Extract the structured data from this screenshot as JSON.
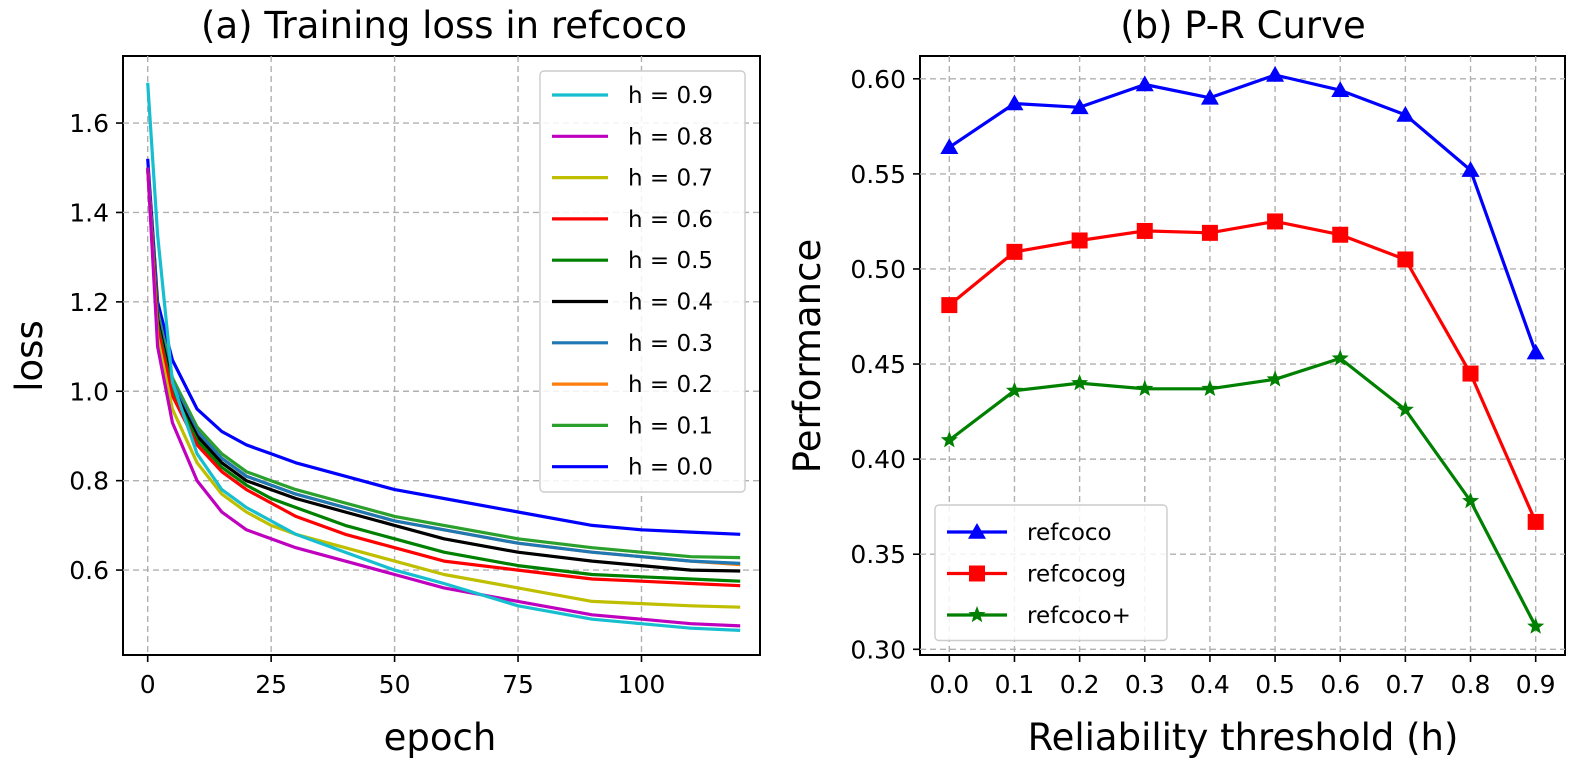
{
  "chart_data": [
    {
      "type": "line",
      "title": "(a) Training loss in refcoco",
      "xlabel": "epoch",
      "ylabel": "loss",
      "xlim": [
        -5,
        124
      ],
      "ylim": [
        0.41,
        1.75
      ],
      "xticks": [
        0,
        25,
        50,
        75,
        100
      ],
      "yticks": [
        0.6,
        0.8,
        1.0,
        1.2,
        1.4,
        1.6
      ],
      "ytick_labels": [
        "0.6",
        "0.8",
        "1.0",
        "1.2",
        "1.4",
        "1.6"
      ],
      "grid": true,
      "legend_position": "top-right",
      "series": [
        {
          "name": "h = 0.9",
          "color": "#17becf",
          "x": [
            0,
            2,
            5,
            10,
            15,
            20,
            25,
            30,
            40,
            50,
            60,
            75,
            90,
            100,
            110,
            120
          ],
          "values": [
            1.69,
            1.35,
            1.02,
            0.86,
            0.78,
            0.74,
            0.71,
            0.68,
            0.64,
            0.6,
            0.57,
            0.52,
            0.49,
            0.48,
            0.47,
            0.465
          ]
        },
        {
          "name": "h = 0.8",
          "color": "#bf00bf",
          "x": [
            0,
            2,
            5,
            10,
            15,
            20,
            25,
            30,
            40,
            50,
            60,
            75,
            90,
            100,
            110,
            120
          ],
          "values": [
            1.5,
            1.1,
            0.93,
            0.8,
            0.73,
            0.69,
            0.67,
            0.65,
            0.62,
            0.59,
            0.56,
            0.53,
            0.5,
            0.49,
            0.48,
            0.475
          ]
        },
        {
          "name": "h = 0.7",
          "color": "#bfbf00",
          "x": [
            0,
            2,
            5,
            10,
            15,
            20,
            25,
            30,
            40,
            50,
            60,
            75,
            90,
            100,
            110,
            120
          ],
          "values": [
            1.5,
            1.12,
            0.96,
            0.84,
            0.77,
            0.73,
            0.7,
            0.68,
            0.65,
            0.62,
            0.59,
            0.56,
            0.53,
            0.525,
            0.52,
            0.517
          ]
        },
        {
          "name": "h = 0.6",
          "color": "#ff0000",
          "x": [
            0,
            2,
            5,
            10,
            15,
            20,
            25,
            30,
            40,
            50,
            60,
            75,
            90,
            100,
            110,
            120
          ],
          "values": [
            1.5,
            1.14,
            0.99,
            0.88,
            0.82,
            0.78,
            0.75,
            0.72,
            0.68,
            0.65,
            0.62,
            0.6,
            0.58,
            0.575,
            0.57,
            0.565
          ]
        },
        {
          "name": "h = 0.5",
          "color": "#008000",
          "x": [
            0,
            2,
            5,
            10,
            15,
            20,
            25,
            30,
            40,
            50,
            60,
            75,
            90,
            100,
            110,
            120
          ],
          "values": [
            1.5,
            1.15,
            1.0,
            0.89,
            0.83,
            0.79,
            0.76,
            0.74,
            0.7,
            0.67,
            0.64,
            0.61,
            0.59,
            0.585,
            0.58,
            0.575
          ]
        },
        {
          "name": "h = 0.4",
          "color": "#000000",
          "x": [
            0,
            2,
            5,
            10,
            15,
            20,
            25,
            30,
            40,
            50,
            60,
            75,
            90,
            100,
            110,
            120
          ],
          "values": [
            1.5,
            1.16,
            1.01,
            0.9,
            0.84,
            0.8,
            0.78,
            0.76,
            0.73,
            0.7,
            0.67,
            0.64,
            0.62,
            0.61,
            0.6,
            0.598
          ]
        },
        {
          "name": "h = 0.3",
          "color": "#1f77b4",
          "x": [
            0,
            2,
            5,
            10,
            15,
            20,
            25,
            30,
            40,
            50,
            60,
            75,
            90,
            100,
            110,
            120
          ],
          "values": [
            1.5,
            1.17,
            1.02,
            0.91,
            0.85,
            0.81,
            0.79,
            0.77,
            0.74,
            0.71,
            0.69,
            0.66,
            0.64,
            0.63,
            0.62,
            0.615
          ]
        },
        {
          "name": "h = 0.2",
          "color": "#ff7f0e",
          "x": [
            0,
            2,
            5,
            10,
            15,
            20,
            25,
            30,
            40,
            50,
            60,
            75,
            90,
            100,
            110,
            120
          ],
          "values": [
            1.5,
            1.17,
            1.02,
            0.91,
            0.85,
            0.81,
            0.79,
            0.77,
            0.74,
            0.71,
            0.69,
            0.66,
            0.64,
            0.63,
            0.62,
            0.612
          ]
        },
        {
          "name": "h = 0.1",
          "color": "#2ca02c",
          "x": [
            0,
            2,
            5,
            10,
            15,
            20,
            25,
            30,
            40,
            50,
            60,
            75,
            90,
            100,
            110,
            120
          ],
          "values": [
            1.5,
            1.18,
            1.03,
            0.92,
            0.86,
            0.82,
            0.8,
            0.78,
            0.75,
            0.72,
            0.7,
            0.67,
            0.65,
            0.64,
            0.63,
            0.628
          ]
        },
        {
          "name": "h = 0.0",
          "color": "#0000ff",
          "x": [
            0,
            2,
            5,
            10,
            15,
            20,
            25,
            30,
            40,
            50,
            60,
            75,
            90,
            100,
            110,
            120
          ],
          "values": [
            1.52,
            1.2,
            1.07,
            0.96,
            0.91,
            0.88,
            0.86,
            0.84,
            0.81,
            0.78,
            0.76,
            0.73,
            0.7,
            0.69,
            0.685,
            0.68
          ]
        }
      ]
    },
    {
      "type": "line",
      "title": "(b) P-R Curve",
      "xlabel": "Reliability threshold (h)",
      "ylabel": "Performance",
      "categories": [
        "0.0",
        "0.1",
        "0.2",
        "0.3",
        "0.4",
        "0.5",
        "0.6",
        "0.7",
        "0.8",
        "0.9"
      ],
      "x": [
        0.0,
        0.1,
        0.2,
        0.3,
        0.4,
        0.5,
        0.6,
        0.7,
        0.8,
        0.9
      ],
      "xlim": [
        -0.045,
        0.945
      ],
      "ylim": [
        0.297,
        0.612
      ],
      "yticks": [
        0.3,
        0.35,
        0.4,
        0.45,
        0.5,
        0.55,
        0.6
      ],
      "ytick_labels": [
        "0.30",
        "0.35",
        "0.40",
        "0.45",
        "0.50",
        "0.55",
        "0.60"
      ],
      "grid": true,
      "legend_position": "bottom-left",
      "series": [
        {
          "name": "refcoco",
          "color": "#0000ff",
          "marker": "triangle",
          "values": [
            0.564,
            0.587,
            0.585,
            0.597,
            0.59,
            0.602,
            0.594,
            0.581,
            0.552,
            0.456
          ]
        },
        {
          "name": "refcocog",
          "color": "#ff0000",
          "marker": "square",
          "values": [
            0.481,
            0.509,
            0.515,
            0.52,
            0.519,
            0.525,
            0.518,
            0.505,
            0.445,
            0.367
          ]
        },
        {
          "name": "refcoco+",
          "color": "#008000",
          "marker": "star",
          "values": [
            0.41,
            0.436,
            0.44,
            0.437,
            0.437,
            0.442,
            0.453,
            0.426,
            0.378,
            0.312
          ]
        }
      ]
    }
  ]
}
